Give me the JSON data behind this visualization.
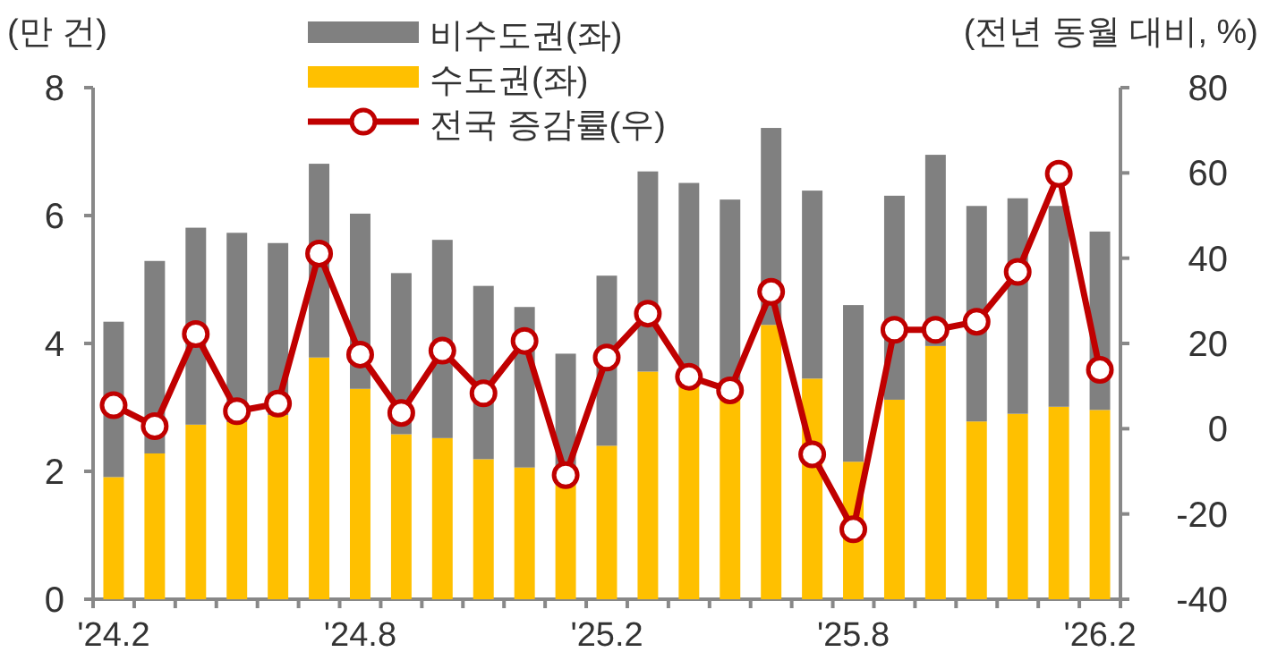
{
  "chart_data": {
    "type": "bar",
    "stacked": true,
    "categories": [
      "'24.2",
      null,
      null,
      null,
      null,
      null,
      "'24.8",
      null,
      null,
      null,
      null,
      null,
      "'25.2",
      null,
      null,
      null,
      null,
      null,
      "'25.8",
      null,
      null,
      null,
      null,
      null,
      "'26.2"
    ],
    "series": [
      {
        "name": "수도권(좌)",
        "color": "#ffc000",
        "values": [
          1.91,
          2.28,
          2.73,
          2.77,
          2.88,
          3.78,
          3.29,
          2.58,
          2.52,
          2.19,
          2.06,
          1.8,
          2.4,
          3.56,
          3.4,
          3.2,
          4.29,
          3.45,
          2.15,
          3.12,
          3.96,
          2.78,
          2.9,
          3.01,
          2.96
        ]
      },
      {
        "name": "비수도권(좌)",
        "color": "#808080",
        "values": [
          2.43,
          3.01,
          3.08,
          2.96,
          2.69,
          3.03,
          2.74,
          2.52,
          3.1,
          2.71,
          2.51,
          2.04,
          2.66,
          3.13,
          3.11,
          3.05,
          3.08,
          2.94,
          2.45,
          3.19,
          2.99,
          3.37,
          3.37,
          3.14,
          2.79
        ]
      },
      {
        "name": "전국 증감률(우)",
        "type": "line",
        "axis": "y2",
        "marker": "circle",
        "color": "#c00000",
        "values": [
          5.5,
          0.6,
          22.2,
          4.1,
          5.9,
          41.1,
          17.4,
          3.7,
          18.3,
          8.3,
          20.6,
          -10.9,
          16.7,
          27.0,
          12.2,
          9.0,
          32.1,
          -6.0,
          -23.6,
          23.2,
          23.2,
          25.1,
          36.8,
          59.8,
          13.8
        ]
      }
    ],
    "ylabel": "(만 건)",
    "y2label": "(전년 동월 대비, %)",
    "ylim": [
      0,
      8
    ],
    "yticks": [
      0,
      2,
      4,
      6,
      8
    ],
    "y2lim": [
      -40,
      80
    ],
    "y2ticks": [
      -40,
      -20,
      0,
      20,
      40,
      60,
      80
    ],
    "legend": "top"
  }
}
